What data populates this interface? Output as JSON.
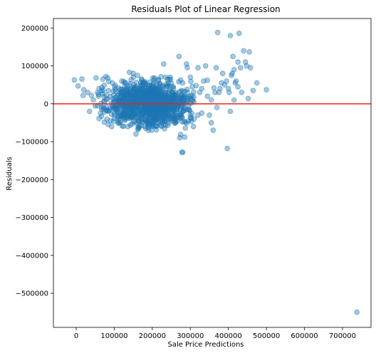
{
  "chart_data": {
    "type": "scatter",
    "title": "Residuals Plot of Linear Regression",
    "xlabel": "Sale Price Predictions",
    "ylabel": "Residuals",
    "xlim": [
      -60000,
      775000
    ],
    "ylim": [
      -590000,
      225000
    ],
    "xticks": [
      {
        "value": 0,
        "label": "0"
      },
      {
        "value": 100000,
        "label": "100000"
      },
      {
        "value": 200000,
        "label": "200000"
      },
      {
        "value": 300000,
        "label": "300000"
      },
      {
        "value": 400000,
        "label": "400000"
      },
      {
        "value": 500000,
        "label": "500000"
      },
      {
        "value": 600000,
        "label": "600000"
      },
      {
        "value": 700000,
        "label": "700000"
      }
    ],
    "yticks": [
      {
        "value": 200000,
        "label": "200000"
      },
      {
        "value": 100000,
        "label": "100000"
      },
      {
        "value": 0,
        "label": "0"
      },
      {
        "value": -100000,
        "label": "−100000"
      },
      {
        "value": -200000,
        "label": "−200000"
      },
      {
        "value": -300000,
        "label": "−300000"
      },
      {
        "value": -400000,
        "label": "−400000"
      },
      {
        "value": -500000,
        "label": "−500000"
      }
    ],
    "reference_line": {
      "y": 0,
      "color": "#e8241f"
    },
    "point_color": "#1f77b4",
    "grid": false,
    "cluster": {
      "x_min": 50000,
      "x_max": 310000,
      "x_center": 190000,
      "y_spread": 27000,
      "count": 1150
    },
    "points": [
      [
        -5000,
        63000
      ],
      [
        5000,
        47000
      ],
      [
        15000,
        65000
      ],
      [
        18000,
        22000
      ],
      [
        20000,
        37000
      ],
      [
        30000,
        30000
      ],
      [
        35000,
        -20000
      ],
      [
        40000,
        22000
      ],
      [
        45000,
        10000
      ],
      [
        50000,
        -5000
      ],
      [
        60000,
        40000
      ],
      [
        70000,
        65000
      ],
      [
        78000,
        72000
      ],
      [
        85000,
        35000
      ],
      [
        90000,
        -45000
      ],
      [
        95000,
        55000
      ],
      [
        110000,
        -50000
      ],
      [
        120000,
        60000
      ],
      [
        130000,
        55000
      ],
      [
        150000,
        70000
      ],
      [
        170000,
        50000
      ],
      [
        180000,
        -60000
      ],
      [
        190000,
        -70000
      ],
      [
        200000,
        -55000
      ],
      [
        140000,
        83000
      ],
      [
        150000,
        80000
      ],
      [
        180000,
        55000
      ],
      [
        200000,
        40000
      ],
      [
        205000,
        55000
      ],
      [
        210000,
        -40000
      ],
      [
        230000,
        -55000
      ],
      [
        235000,
        70000
      ],
      [
        240000,
        65000
      ],
      [
        247000,
        70000
      ],
      [
        248000,
        64000
      ],
      [
        230000,
        105000
      ],
      [
        255000,
        45000
      ],
      [
        260000,
        -50000
      ],
      [
        265000,
        -45000
      ],
      [
        270000,
        125000
      ],
      [
        272000,
        -90000
      ],
      [
        278000,
        -128000
      ],
      [
        280000,
        -128000
      ],
      [
        285000,
        -88000
      ],
      [
        290000,
        105000
      ],
      [
        292000,
        95000
      ],
      [
        300000,
        70000
      ],
      [
        305000,
        45000
      ],
      [
        308000,
        -60000
      ],
      [
        310000,
        -40000
      ],
      [
        315000,
        48000
      ],
      [
        320000,
        -30000
      ],
      [
        320000,
        95000
      ],
      [
        325000,
        30000
      ],
      [
        330000,
        -25000
      ],
      [
        335000,
        60000
      ],
      [
        340000,
        100000
      ],
      [
        345000,
        62000
      ],
      [
        350000,
        -30000
      ],
      [
        355000,
        -50000
      ],
      [
        360000,
        -70000
      ],
      [
        362000,
        42000
      ],
      [
        365000,
        30000
      ],
      [
        368000,
        95000
      ],
      [
        372000,
        188000
      ],
      [
        375000,
        30000
      ],
      [
        378000,
        40000
      ],
      [
        382000,
        55000
      ],
      [
        385000,
        80000
      ],
      [
        390000,
        50000
      ],
      [
        395000,
        60000
      ],
      [
        397000,
        -118000
      ],
      [
        400000,
        40000
      ],
      [
        402000,
        30000
      ],
      [
        405000,
        -20000
      ],
      [
        405000,
        180000
      ],
      [
        410000,
        80000
      ],
      [
        412000,
        125000
      ],
      [
        415000,
        90000
      ],
      [
        418000,
        55000
      ],
      [
        420000,
        60000
      ],
      [
        425000,
        45000
      ],
      [
        428000,
        186000
      ],
      [
        432000,
        95000
      ],
      [
        435000,
        30000
      ],
      [
        440000,
        140000
      ],
      [
        445000,
        110000
      ],
      [
        448000,
        100000
      ],
      [
        452000,
        14000
      ],
      [
        455000,
        137000
      ],
      [
        458000,
        95000
      ],
      [
        465000,
        35000
      ],
      [
        475000,
        55000
      ],
      [
        500000,
        37000
      ],
      [
        415000,
        10000
      ],
      [
        408000,
        75000
      ],
      [
        425000,
        110000
      ],
      [
        300000,
        20000
      ],
      [
        280000,
        55000
      ],
      [
        295000,
        -45000
      ],
      [
        330000,
        40000
      ],
      [
        345000,
        20000
      ],
      [
        355000,
        10000
      ],
      [
        370000,
        -10000
      ],
      [
        738000,
        -550000
      ]
    ]
  }
}
